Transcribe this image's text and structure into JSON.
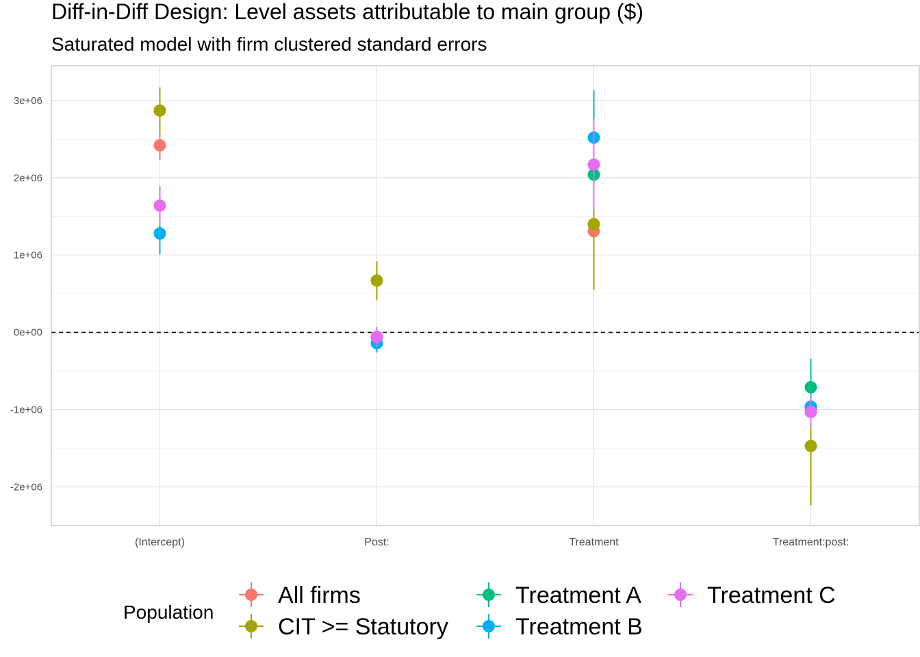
{
  "chart_data": {
    "type": "scatter",
    "title": "Diff-in-Diff Design: Level assets attributable to main group  ($)",
    "subtitle": "Saturated model with firm clustered standard errors",
    "xlabel": "",
    "ylabel": "",
    "categories": [
      "(Intercept)",
      "Post:",
      "Treatment",
      "Treatment:post:"
    ],
    "ylim": [
      -2500000,
      3450000
    ],
    "y_ticks": [
      3000000,
      2000000,
      1000000,
      0,
      -1000000,
      -2000000
    ],
    "y_tick_labels": [
      "3e+06",
      "2e+06",
      "1e+06",
      "0e+00",
      "-1e+06",
      "-2e+06"
    ],
    "reference_line": 0,
    "grid": true,
    "legend": {
      "title": "Population",
      "placement": "bottom"
    },
    "series": [
      {
        "name": "All firms",
        "color": "#F8766D",
        "values": [
          2420000,
          -60000,
          1310000,
          -1000000
        ],
        "lower": [
          2230000,
          -130000,
          1240000,
          -1060000
        ],
        "upper": [
          2610000,
          10000,
          1380000,
          -940000
        ]
      },
      {
        "name": "CIT >= Statutory",
        "color": "#A3A500",
        "values": [
          2870000,
          670000,
          1400000,
          -1470000
        ],
        "lower": [
          2570000,
          420000,
          550000,
          -2240000
        ],
        "upper": [
          3170000,
          920000,
          2250000,
          -700000
        ]
      },
      {
        "name": "Treatment A",
        "color": "#00BF7D",
        "values": [
          null,
          null,
          2040000,
          -710000
        ],
        "lower": [
          null,
          null,
          1820000,
          -1080000
        ],
        "upper": [
          null,
          null,
          2260000,
          -340000
        ]
      },
      {
        "name": "Treatment B",
        "color": "#00B0F6",
        "values": [
          1280000,
          -140000,
          2520000,
          -960000
        ],
        "lower": [
          1010000,
          -260000,
          1900000,
          -1160000
        ],
        "upper": [
          1550000,
          -20000,
          3140000,
          -760000
        ]
      },
      {
        "name": "Treatment C",
        "color": "#E76BF3",
        "values": [
          1640000,
          -60000,
          2170000,
          -1030000
        ],
        "lower": [
          1390000,
          -190000,
          1580000,
          -1220000
        ],
        "upper": [
          1890000,
          70000,
          2760000,
          -840000
        ]
      }
    ]
  }
}
